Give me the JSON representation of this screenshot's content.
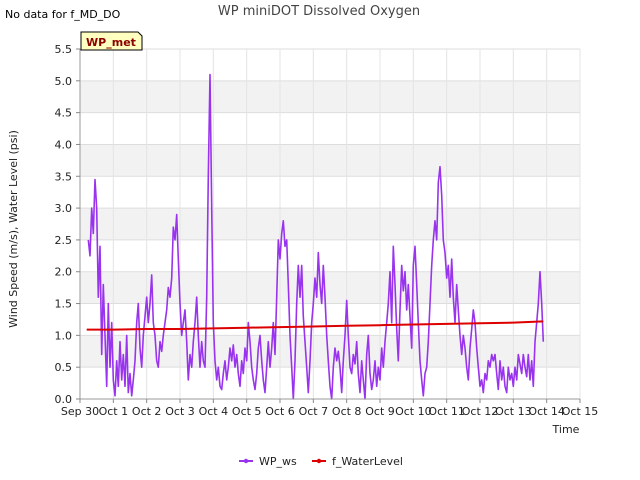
{
  "notice": "No data for f_MD_DO",
  "badge": "WP_met",
  "chart_data": {
    "type": "line",
    "title": "WP miniDOT Dissolved Oxygen",
    "xlabel": "Time",
    "ylabel": "Wind Speed (m/s), Water Level (psi)",
    "ylim": [
      0,
      5.5
    ],
    "y_ticks": [
      "0.0",
      "0.5",
      "1.0",
      "1.5",
      "2.0",
      "2.5",
      "3.0",
      "3.5",
      "4.0",
      "4.5",
      "5.0",
      "5.5"
    ],
    "x_range_days": [
      0,
      15
    ],
    "x_ticks": [
      "Sep 30",
      "Oct 1",
      "Oct 2",
      "Oct 3",
      "Oct 4",
      "Oct 5",
      "Oct 6",
      "Oct 7",
      "Oct 8",
      "Oct 9",
      "Oct 10",
      "Oct 11",
      "Oct 12",
      "Oct 13",
      "Oct 14",
      "Oct 15"
    ],
    "grid": true,
    "legend_placement": "bottom-center",
    "series": [
      {
        "name": "WP_ws",
        "color": "#9933ee",
        "points": [
          [
            0.25,
            2.5
          ],
          [
            0.3,
            2.25
          ],
          [
            0.35,
            3.0
          ],
          [
            0.4,
            2.6
          ],
          [
            0.45,
            3.45
          ],
          [
            0.5,
            3.0
          ],
          [
            0.55,
            1.6
          ],
          [
            0.6,
            2.4
          ],
          [
            0.65,
            0.7
          ],
          [
            0.7,
            1.8
          ],
          [
            0.75,
            1.0
          ],
          [
            0.8,
            0.2
          ],
          [
            0.85,
            1.5
          ],
          [
            0.9,
            0.5
          ],
          [
            0.95,
            1.2
          ],
          [
            1.0,
            0.3
          ],
          [
            1.05,
            0.05
          ],
          [
            1.1,
            0.6
          ],
          [
            1.15,
            0.2
          ],
          [
            1.2,
            0.9
          ],
          [
            1.25,
            0.3
          ],
          [
            1.3,
            0.7
          ],
          [
            1.35,
            0.2
          ],
          [
            1.4,
            1.0
          ],
          [
            1.45,
            0.1
          ],
          [
            1.5,
            0.4
          ],
          [
            1.55,
            0.05
          ],
          [
            1.6,
            0.3
          ],
          [
            1.65,
            0.6
          ],
          [
            1.7,
            1.2
          ],
          [
            1.75,
            1.5
          ],
          [
            1.8,
            0.8
          ],
          [
            1.85,
            0.5
          ],
          [
            1.9,
            1.0
          ],
          [
            1.95,
            1.3
          ],
          [
            2.0,
            1.6
          ],
          [
            2.05,
            1.2
          ],
          [
            2.1,
            1.5
          ],
          [
            2.15,
            1.95
          ],
          [
            2.2,
            1.2
          ],
          [
            2.25,
            1.0
          ],
          [
            2.3,
            0.6
          ],
          [
            2.35,
            0.5
          ],
          [
            2.4,
            0.9
          ],
          [
            2.45,
            0.75
          ],
          [
            2.5,
            1.0
          ],
          [
            2.55,
            1.2
          ],
          [
            2.6,
            1.4
          ],
          [
            2.65,
            1.75
          ],
          [
            2.7,
            1.6
          ],
          [
            2.75,
            1.9
          ],
          [
            2.8,
            2.7
          ],
          [
            2.85,
            2.5
          ],
          [
            2.9,
            2.9
          ],
          [
            2.95,
            2.2
          ],
          [
            3.0,
            1.5
          ],
          [
            3.05,
            1.0
          ],
          [
            3.1,
            1.2
          ],
          [
            3.15,
            1.4
          ],
          [
            3.2,
            0.9
          ],
          [
            3.25,
            0.3
          ],
          [
            3.3,
            0.7
          ],
          [
            3.35,
            0.5
          ],
          [
            3.4,
            0.9
          ],
          [
            3.45,
            1.2
          ],
          [
            3.5,
            1.6
          ],
          [
            3.55,
            1.0
          ],
          [
            3.6,
            0.5
          ],
          [
            3.65,
            0.9
          ],
          [
            3.7,
            0.6
          ],
          [
            3.75,
            0.5
          ],
          [
            3.8,
            1.6
          ],
          [
            3.85,
            3.5
          ],
          [
            3.9,
            5.1
          ],
          [
            3.95,
            3.0
          ],
          [
            4.0,
            1.2
          ],
          [
            4.05,
            0.6
          ],
          [
            4.1,
            0.3
          ],
          [
            4.15,
            0.5
          ],
          [
            4.2,
            0.2
          ],
          [
            4.25,
            0.15
          ],
          [
            4.3,
            0.4
          ],
          [
            4.35,
            0.6
          ],
          [
            4.4,
            0.3
          ],
          [
            4.45,
            0.5
          ],
          [
            4.5,
            0.8
          ],
          [
            4.55,
            0.6
          ],
          [
            4.6,
            0.85
          ],
          [
            4.65,
            0.5
          ],
          [
            4.7,
            0.7
          ],
          [
            4.75,
            0.4
          ],
          [
            4.8,
            0.2
          ],
          [
            4.85,
            0.6
          ],
          [
            4.9,
            0.4
          ],
          [
            4.95,
            0.8
          ],
          [
            5.0,
            0.6
          ],
          [
            5.05,
            1.2
          ],
          [
            5.1,
            0.9
          ],
          [
            5.15,
            0.5
          ],
          [
            5.2,
            0.3
          ],
          [
            5.25,
            0.15
          ],
          [
            5.3,
            0.4
          ],
          [
            5.35,
            0.8
          ],
          [
            5.4,
            1.0
          ],
          [
            5.45,
            0.6
          ],
          [
            5.5,
            0.3
          ],
          [
            5.55,
            0.1
          ],
          [
            5.6,
            0.5
          ],
          [
            5.65,
            0.9
          ],
          [
            5.7,
            0.5
          ],
          [
            5.75,
            0.8
          ],
          [
            5.8,
            1.2
          ],
          [
            5.85,
            0.7
          ],
          [
            5.9,
            1.6
          ],
          [
            5.95,
            2.5
          ],
          [
            6.0,
            2.2
          ],
          [
            6.05,
            2.6
          ],
          [
            6.1,
            2.8
          ],
          [
            6.15,
            2.4
          ],
          [
            6.2,
            2.5
          ],
          [
            6.25,
            1.8
          ],
          [
            6.3,
            1.0
          ],
          [
            6.35,
            0.5
          ],
          [
            6.4,
            0.0
          ],
          [
            6.45,
            0.6
          ],
          [
            6.5,
            1.5
          ],
          [
            6.55,
            2.1
          ],
          [
            6.6,
            1.6
          ],
          [
            6.65,
            2.1
          ],
          [
            6.7,
            1.3
          ],
          [
            6.75,
            0.9
          ],
          [
            6.8,
            0.5
          ],
          [
            6.85,
            0.1
          ],
          [
            6.9,
            0.6
          ],
          [
            6.95,
            1.2
          ],
          [
            7.0,
            1.5
          ],
          [
            7.05,
            1.9
          ],
          [
            7.1,
            1.6
          ],
          [
            7.15,
            2.3
          ],
          [
            7.2,
            1.8
          ],
          [
            7.25,
            1.5
          ],
          [
            7.3,
            2.1
          ],
          [
            7.35,
            1.6
          ],
          [
            7.4,
            1.0
          ],
          [
            7.45,
            0.6
          ],
          [
            7.5,
            0.2
          ],
          [
            7.55,
            0.0
          ],
          [
            7.6,
            0.5
          ],
          [
            7.65,
            0.8
          ],
          [
            7.7,
            0.6
          ],
          [
            7.75,
            0.75
          ],
          [
            7.8,
            0.5
          ],
          [
            7.85,
            0.1
          ],
          [
            7.9,
            0.6
          ],
          [
            7.95,
            1.0
          ],
          [
            8.0,
            1.55
          ],
          [
            8.05,
            1.0
          ],
          [
            8.1,
            0.5
          ],
          [
            8.15,
            0.4
          ],
          [
            8.2,
            0.7
          ],
          [
            8.25,
            0.55
          ],
          [
            8.3,
            0.9
          ],
          [
            8.35,
            0.4
          ],
          [
            8.4,
            0.1
          ],
          [
            8.45,
            0.6
          ],
          [
            8.5,
            0.3
          ],
          [
            8.55,
            0.0
          ],
          [
            8.6,
            0.7
          ],
          [
            8.65,
            1.0
          ],
          [
            8.7,
            0.4
          ],
          [
            8.75,
            0.15
          ],
          [
            8.8,
            0.3
          ],
          [
            8.85,
            0.6
          ],
          [
            8.9,
            0.2
          ],
          [
            8.95,
            0.5
          ],
          [
            9.0,
            0.3
          ],
          [
            9.05,
            0.8
          ],
          [
            9.1,
            0.5
          ],
          [
            9.15,
            0.9
          ],
          [
            9.2,
            1.2
          ],
          [
            9.25,
            1.5
          ],
          [
            9.3,
            2.0
          ],
          [
            9.35,
            1.2
          ],
          [
            9.4,
            2.4
          ],
          [
            9.45,
            1.8
          ],
          [
            9.5,
            1.1
          ],
          [
            9.55,
            0.6
          ],
          [
            9.6,
            1.4
          ],
          [
            9.65,
            2.1
          ],
          [
            9.7,
            1.7
          ],
          [
            9.75,
            2.0
          ],
          [
            9.8,
            1.4
          ],
          [
            9.85,
            1.8
          ],
          [
            9.9,
            1.3
          ],
          [
            9.95,
            0.8
          ],
          [
            10.0,
            2.1
          ],
          [
            10.05,
            2.4
          ],
          [
            10.1,
            1.8
          ],
          [
            10.15,
            1.2
          ],
          [
            10.2,
            0.6
          ],
          [
            10.25,
            0.3
          ],
          [
            10.3,
            0.05
          ],
          [
            10.35,
            0.4
          ],
          [
            10.4,
            0.5
          ],
          [
            10.45,
            0.9
          ],
          [
            10.5,
            1.5
          ],
          [
            10.55,
            2.1
          ],
          [
            10.6,
            2.5
          ],
          [
            10.65,
            2.8
          ],
          [
            10.7,
            2.5
          ],
          [
            10.75,
            3.4
          ],
          [
            10.8,
            3.65
          ],
          [
            10.85,
            3.2
          ],
          [
            10.9,
            2.5
          ],
          [
            10.95,
            2.3
          ],
          [
            11.0,
            1.9
          ],
          [
            11.05,
            2.1
          ],
          [
            11.1,
            1.6
          ],
          [
            11.15,
            2.2
          ],
          [
            11.2,
            1.6
          ],
          [
            11.25,
            1.2
          ],
          [
            11.3,
            1.8
          ],
          [
            11.35,
            1.4
          ],
          [
            11.4,
            1.0
          ],
          [
            11.45,
            0.7
          ],
          [
            11.5,
            1.0
          ],
          [
            11.55,
            0.8
          ],
          [
            11.6,
            0.5
          ],
          [
            11.65,
            0.3
          ],
          [
            11.7,
            0.8
          ],
          [
            11.75,
            1.1
          ],
          [
            11.8,
            1.4
          ],
          [
            11.85,
            1.2
          ],
          [
            11.9,
            0.8
          ],
          [
            11.95,
            0.5
          ],
          [
            12.0,
            0.2
          ],
          [
            12.05,
            0.3
          ],
          [
            12.1,
            0.1
          ],
          [
            12.15,
            0.4
          ],
          [
            12.2,
            0.3
          ],
          [
            12.25,
            0.6
          ],
          [
            12.3,
            0.5
          ],
          [
            12.35,
            0.7
          ],
          [
            12.4,
            0.6
          ],
          [
            12.45,
            0.7
          ],
          [
            12.5,
            0.4
          ],
          [
            12.55,
            0.15
          ],
          [
            12.6,
            0.6
          ],
          [
            12.65,
            0.3
          ],
          [
            12.7,
            0.5
          ],
          [
            12.75,
            0.2
          ],
          [
            12.8,
            0.1
          ],
          [
            12.85,
            0.5
          ],
          [
            12.9,
            0.3
          ],
          [
            12.95,
            0.4
          ],
          [
            13.0,
            0.2
          ],
          [
            13.05,
            0.5
          ],
          [
            13.1,
            0.3
          ],
          [
            13.15,
            0.7
          ],
          [
            13.2,
            0.55
          ],
          [
            13.25,
            0.4
          ],
          [
            13.3,
            0.7
          ],
          [
            13.35,
            0.5
          ],
          [
            13.4,
            0.35
          ],
          [
            13.45,
            0.7
          ],
          [
            13.5,
            0.3
          ],
          [
            13.55,
            0.6
          ],
          [
            13.6,
            0.2
          ],
          [
            13.65,
            0.9
          ],
          [
            13.7,
            1.2
          ],
          [
            13.75,
            1.5
          ],
          [
            13.8,
            2.0
          ],
          [
            13.85,
            1.5
          ],
          [
            13.9,
            0.9
          ]
        ]
      },
      {
        "name": "f_WaterLevel",
        "color": "#dd0000",
        "points": [
          [
            0.2,
            1.09
          ],
          [
            1.0,
            1.09
          ],
          [
            2.0,
            1.1
          ],
          [
            3.0,
            1.1
          ],
          [
            4.0,
            1.11
          ],
          [
            5.0,
            1.12
          ],
          [
            6.0,
            1.13
          ],
          [
            7.0,
            1.14
          ],
          [
            8.0,
            1.15
          ],
          [
            9.0,
            1.16
          ],
          [
            10.0,
            1.17
          ],
          [
            11.0,
            1.18
          ],
          [
            12.0,
            1.19
          ],
          [
            13.0,
            1.2
          ],
          [
            13.9,
            1.22
          ]
        ]
      }
    ]
  }
}
